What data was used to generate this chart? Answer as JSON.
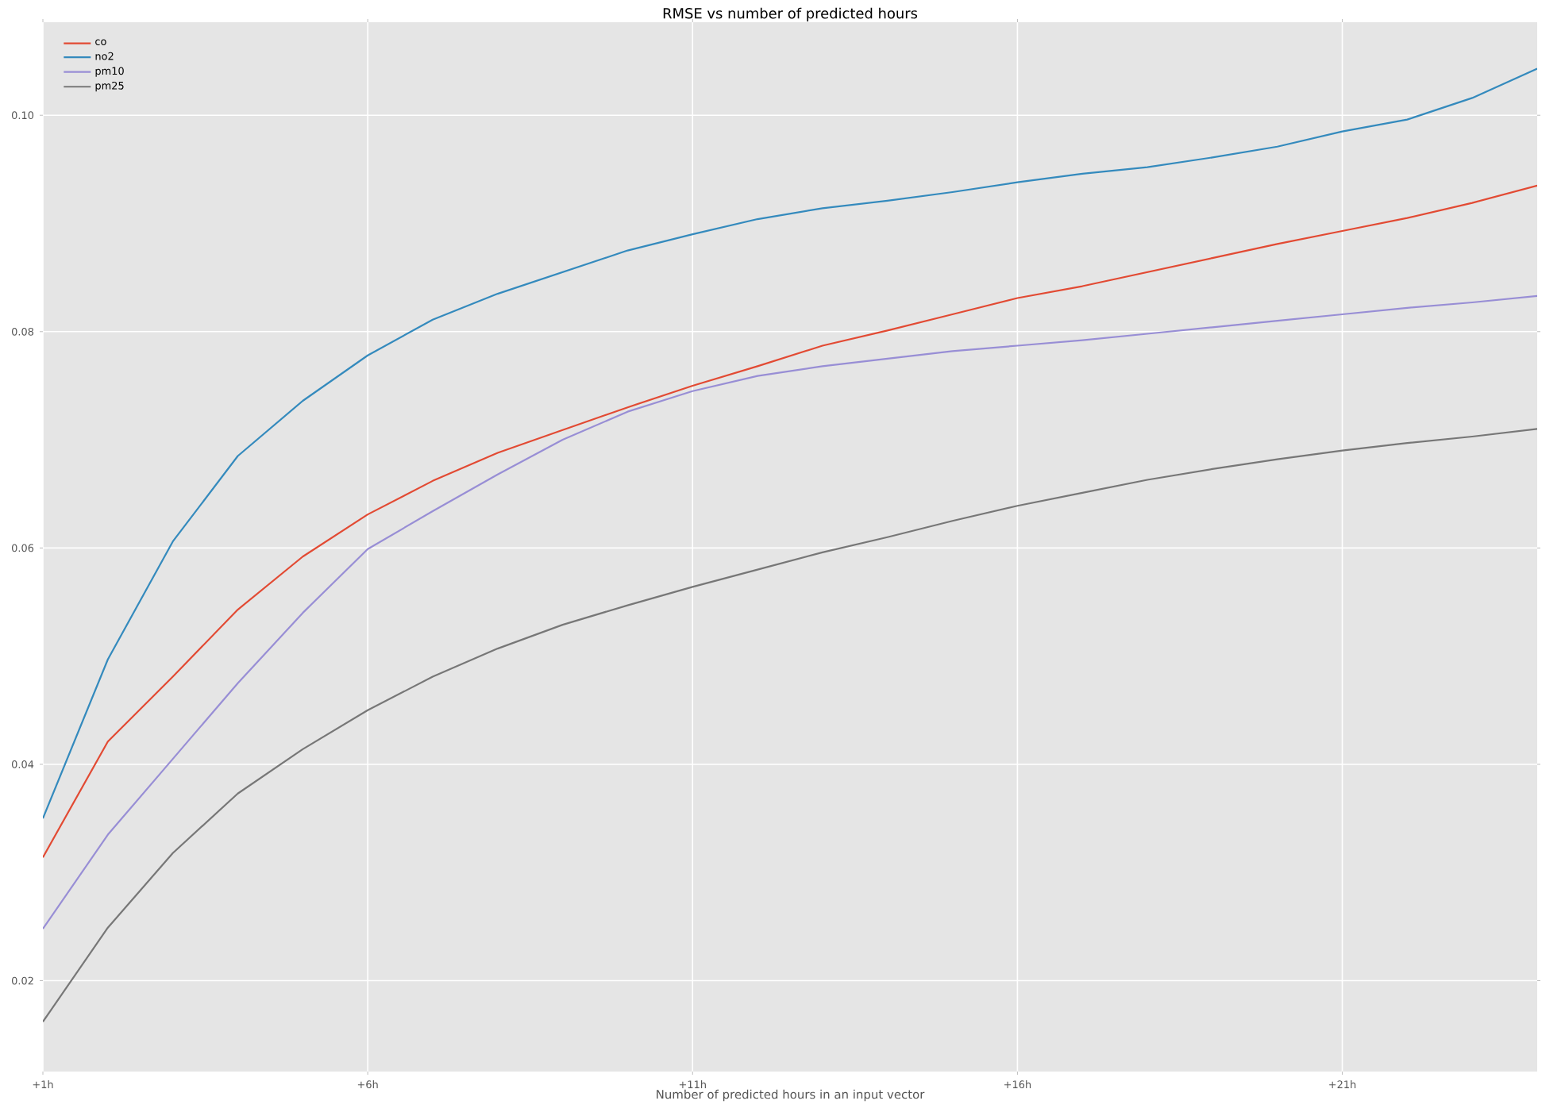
{
  "chart_data": {
    "type": "line",
    "title": "RMSE vs number of predicted hours",
    "xlabel": "Number of predicted hours in an input vector",
    "x": [
      1,
      2,
      3,
      4,
      5,
      6,
      7,
      8,
      9,
      10,
      11,
      12,
      13,
      14,
      15,
      16,
      17,
      18,
      19,
      20,
      21,
      22,
      23,
      24
    ],
    "series": [
      {
        "name": "co",
        "color": "#e24a33",
        "values": [
          0.0314,
          0.0421,
          0.0481,
          0.0543,
          0.0592,
          0.0631,
          0.0662,
          0.0688,
          0.0709,
          0.073,
          0.075,
          0.0768,
          0.0787,
          0.0801,
          0.0816,
          0.0831,
          0.0842,
          0.0855,
          0.0868,
          0.0881,
          0.0893,
          0.0905,
          0.0919,
          0.0935
        ]
      },
      {
        "name": "no2",
        "color": "#348abd",
        "values": [
          0.035,
          0.0497,
          0.0606,
          0.0685,
          0.0736,
          0.0778,
          0.0811,
          0.0835,
          0.0855,
          0.0875,
          0.089,
          0.0904,
          0.0914,
          0.0921,
          0.0929,
          0.0938,
          0.0946,
          0.0952,
          0.0961,
          0.0971,
          0.0985,
          0.0996,
          0.1016,
          0.1043
        ]
      },
      {
        "name": "pm10",
        "color": "#988ed5",
        "values": [
          0.0248,
          0.0335,
          0.0405,
          0.0475,
          0.054,
          0.0599,
          0.0634,
          0.0668,
          0.07,
          0.0726,
          0.0745,
          0.0759,
          0.0768,
          0.0775,
          0.0782,
          0.0787,
          0.0792,
          0.0798,
          0.0804,
          0.081,
          0.0816,
          0.0822,
          0.0827,
          0.0833
        ]
      },
      {
        "name": "pm25",
        "color": "#777777",
        "values": [
          0.0162,
          0.0249,
          0.0318,
          0.0373,
          0.0414,
          0.045,
          0.0481,
          0.0507,
          0.0529,
          0.0547,
          0.0564,
          0.058,
          0.0596,
          0.061,
          0.0625,
          0.0639,
          0.0651,
          0.0663,
          0.0673,
          0.0682,
          0.069,
          0.0697,
          0.0703,
          0.071
        ]
      }
    ],
    "xlim": [
      1,
      24
    ],
    "xticks": [
      {
        "value": 1,
        "label": "+1h"
      },
      {
        "value": 6,
        "label": "+6h"
      },
      {
        "value": 11,
        "label": "+11h"
      },
      {
        "value": 16,
        "label": "+16h"
      },
      {
        "value": 21,
        "label": "+21h"
      }
    ],
    "ylim": [
      0.0116,
      0.1086
    ],
    "yticks": [
      {
        "value": 0.02,
        "label": "0.02"
      },
      {
        "value": 0.04,
        "label": "0.04"
      },
      {
        "value": 0.06,
        "label": "0.06"
      },
      {
        "value": 0.08,
        "label": "0.08"
      },
      {
        "value": 0.1,
        "label": "0.10"
      }
    ],
    "grid": true,
    "legend": "top left",
    "marker": "none",
    "line_style": "solid"
  }
}
